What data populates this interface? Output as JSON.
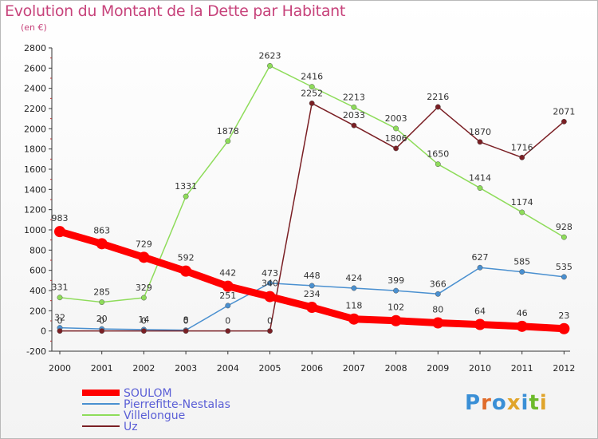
{
  "header": {
    "title": "Evolution du Montant de la Dette par Habitant",
    "subtitle": "(en €)"
  },
  "logo": {
    "letters": [
      "P",
      "r",
      "o",
      "x",
      "i",
      "t",
      "i"
    ],
    "colors": [
      "#3a8fd6",
      "#e06b2a",
      "#3a8fd6",
      "#e0a42a",
      "#3a8fd6",
      "#6cba2a",
      "#e0a42a"
    ]
  },
  "chart_data": {
    "type": "line",
    "title": "Evolution du Montant de la Dette par Habitant",
    "subtitle": "(en €)",
    "x": [
      2000,
      2001,
      2002,
      2003,
      2004,
      2005,
      2006,
      2007,
      2008,
      2009,
      2010,
      2011,
      2012
    ],
    "ylim": [
      -200,
      2800
    ],
    "yticks": [
      -200,
      0,
      200,
      400,
      600,
      800,
      1000,
      1200,
      1400,
      1600,
      1800,
      2000,
      2200,
      2400,
      2600,
      2800
    ],
    "grid": false,
    "legend": "bottom-left",
    "series": [
      {
        "name": "SOULOM",
        "color": "#ff0000",
        "values": [
          983,
          863,
          729,
          592,
          442,
          340,
          234,
          118,
          102,
          80,
          64,
          46,
          23
        ]
      },
      {
        "name": "Pierrefitte-Nestalas",
        "color": "#4a90d0",
        "values": [
          32,
          20,
          14,
          8,
          251,
          473,
          448,
          424,
          399,
          366,
          627,
          585,
          535
        ]
      },
      {
        "name": "Villelongue",
        "color": "#8edc5a",
        "values": [
          331,
          285,
          329,
          1331,
          1878,
          2623,
          2416,
          2213,
          2003,
          1650,
          1414,
          1174,
          928
        ]
      },
      {
        "name": "Uz",
        "color": "#7a1f24",
        "values": [
          0,
          0,
          0,
          0,
          0,
          0,
          2252,
          2033,
          1806,
          2216,
          1870,
          1716,
          2071
        ]
      }
    ]
  }
}
